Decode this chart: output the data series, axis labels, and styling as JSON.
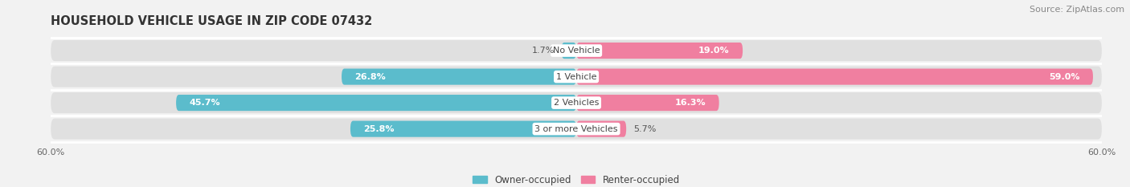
{
  "title": "HOUSEHOLD VEHICLE USAGE IN ZIP CODE 07432",
  "source": "Source: ZipAtlas.com",
  "categories": [
    "No Vehicle",
    "1 Vehicle",
    "2 Vehicles",
    "3 or more Vehicles"
  ],
  "owner_values": [
    1.7,
    26.8,
    45.7,
    25.8
  ],
  "renter_values": [
    19.0,
    59.0,
    16.3,
    5.7
  ],
  "owner_color": "#5bbccc",
  "renter_color": "#f07fa0",
  "background_color": "#f2f2f2",
  "bar_background_color": "#e0e0e0",
  "xlim": [
    -60,
    60
  ],
  "bar_height": 0.62,
  "legend_owner": "Owner-occupied",
  "legend_renter": "Renter-occupied",
  "title_fontsize": 10.5,
  "source_fontsize": 8,
  "label_fontsize": 8,
  "category_fontsize": 8
}
